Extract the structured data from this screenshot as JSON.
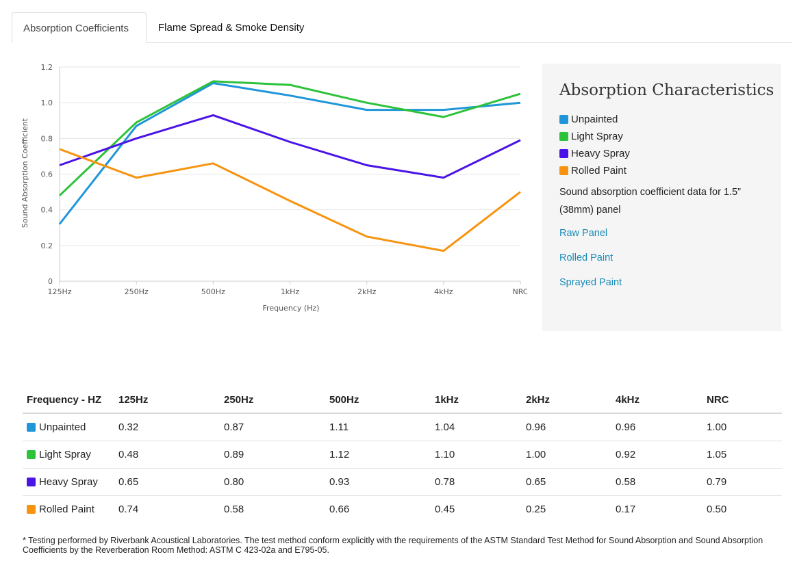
{
  "tabs": [
    {
      "label": "Absorption Coefficients",
      "active": true
    },
    {
      "label": "Flame Spread & Smoke Density",
      "active": false
    }
  ],
  "panel": {
    "title": "Absorption Characteristics",
    "legend": [
      {
        "label": "Unpainted",
        "color": "#1f96d8"
      },
      {
        "label": "Light Spray",
        "color": "#2cc23a"
      },
      {
        "label": "Heavy Spray",
        "color": "#4a14e6"
      },
      {
        "label": "Rolled Paint",
        "color": "#f7930f"
      }
    ],
    "description": "Sound absorption coefficient data for 1.5” (38mm) panel",
    "links": [
      "Raw Panel",
      "Rolled Paint",
      "Sprayed Paint"
    ]
  },
  "chart_data": {
    "type": "line",
    "categories": [
      "125Hz",
      "250Hz",
      "500Hz",
      "1kHz",
      "2kHz",
      "4kHz",
      "NRC"
    ],
    "xlabel": "Frequency (Hz)",
    "ylabel": "Sound Absorption Coefficient",
    "ylim": [
      0,
      1.2
    ],
    "yticks": [
      "0",
      "0.2",
      "0.4",
      "0.6",
      "0.8",
      "1.0",
      "1.2"
    ],
    "grid": true,
    "series": [
      {
        "name": "Unpainted",
        "color": "#1f96d8",
        "values": [
          0.32,
          0.87,
          1.11,
          1.04,
          0.96,
          0.96,
          1.0
        ]
      },
      {
        "name": "Light Spray",
        "color": "#2cc23a",
        "values": [
          0.48,
          0.89,
          1.12,
          1.1,
          1.0,
          0.92,
          1.05
        ]
      },
      {
        "name": "Heavy Spray",
        "color": "#4a14e6",
        "values": [
          0.65,
          0.8,
          0.93,
          0.78,
          0.65,
          0.58,
          0.79
        ]
      },
      {
        "name": "Rolled Paint",
        "color": "#f7930f",
        "values": [
          0.74,
          0.58,
          0.66,
          0.45,
          0.25,
          0.17,
          0.5
        ]
      }
    ]
  },
  "table": {
    "headers": [
      "Frequency - HZ",
      "125Hz",
      "250Hz",
      "500Hz",
      "1kHz",
      "2kHz",
      "4kHz",
      "NRC"
    ],
    "rows": [
      {
        "label": "Unpainted",
        "color": "#1f96d8",
        "cells": [
          "0.32",
          "0.87",
          "1.11",
          "1.04",
          "0.96",
          "0.96",
          "1.00"
        ]
      },
      {
        "label": "Light Spray",
        "color": "#2cc23a",
        "cells": [
          "0.48",
          "0.89",
          "1.12",
          "1.10",
          "1.00",
          "0.92",
          "1.05"
        ]
      },
      {
        "label": "Heavy Spray",
        "color": "#4a14e6",
        "cells": [
          "0.65",
          "0.80",
          "0.93",
          "0.78",
          "0.65",
          "0.58",
          "0.79"
        ]
      },
      {
        "label": "Rolled Paint",
        "color": "#f7930f",
        "cells": [
          "0.74",
          "0.58",
          "0.66",
          "0.45",
          "0.25",
          "0.17",
          "0.50"
        ]
      }
    ]
  },
  "footnote": "* Testing performed by Riverbank Acoustical Laboratories. The test method conform explicitly with the requirements of the ASTM Standard Test Method for Sound Absorption and Sound Absorption Coefficients by the Reverberation Room Method: ASTM C 423-02a and E795-05."
}
